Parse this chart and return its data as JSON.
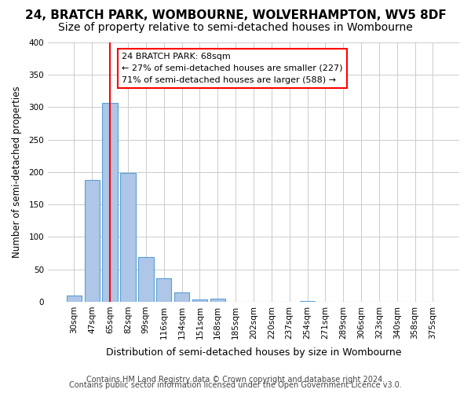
{
  "title": "24, BRATCH PARK, WOMBOURNE, WOLVERHAMPTON, WV5 8DF",
  "subtitle": "Size of property relative to semi-detached houses in Wombourne",
  "xlabel": "Distribution of semi-detached houses by size in Wombourne",
  "ylabel": "Number of semi-detached properties",
  "bin_labels": [
    "30sqm",
    "47sqm",
    "65sqm",
    "82sqm",
    "99sqm",
    "116sqm",
    "134sqm",
    "151sqm",
    "168sqm",
    "185sqm",
    "202sqm",
    "220sqm",
    "237sqm",
    "254sqm",
    "271sqm",
    "289sqm",
    "306sqm",
    "323sqm",
    "340sqm",
    "358sqm",
    "375sqm"
  ],
  "bar_heights": [
    9,
    188,
    307,
    199,
    69,
    36,
    15,
    4,
    5,
    0,
    0,
    0,
    0,
    1,
    0,
    0,
    0,
    0,
    0,
    0,
    0
  ],
  "bar_color": "#aec6e8",
  "bar_edge_color": "#5a9fd4",
  "vline_x": 2,
  "vline_color": "red",
  "annotation_text": "24 BRATCH PARK: 68sqm\n← 27% of semi-detached houses are smaller (227)\n71% of semi-detached houses are larger (588) →",
  "annotation_box_color": "white",
  "annotation_box_edge": "red",
  "footnote1": "Contains HM Land Registry data © Crown copyright and database right 2024.",
  "footnote2": "Contains public sector information licensed under the Open Government Licence v3.0.",
  "ylim": [
    0,
    400
  ],
  "title_fontsize": 11,
  "subtitle_fontsize": 10,
  "xlabel_fontsize": 9,
  "ylabel_fontsize": 8.5,
  "tick_fontsize": 7.5,
  "annotation_fontsize": 8,
  "footnote_fontsize": 7
}
